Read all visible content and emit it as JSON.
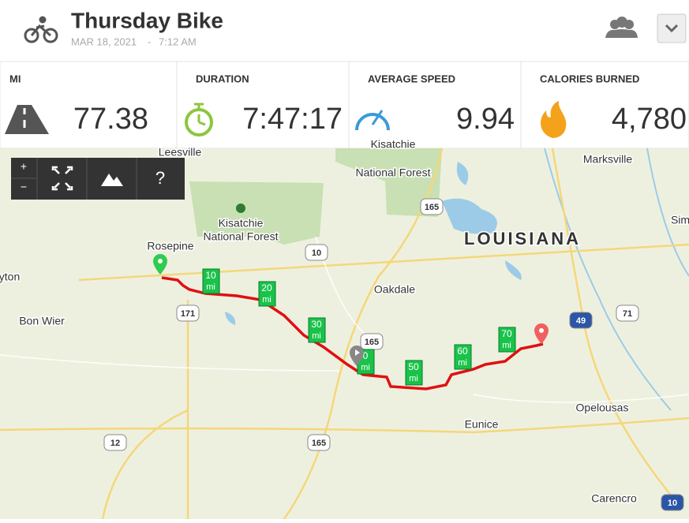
{
  "header": {
    "title": "Thursday Bike",
    "date": "MAR 18, 2021",
    "separator": "-",
    "time": "7:12 AM"
  },
  "stats": [
    {
      "label": "MI",
      "value": "77.38"
    },
    {
      "label": "DURATION",
      "value": "7:47:17"
    },
    {
      "label": "AVERAGE SPEED",
      "value": "9.94"
    },
    {
      "label": "CALORIES BURNED",
      "value": "4,780"
    }
  ],
  "map": {
    "controls": [
      "+",
      "−",
      "?"
    ],
    "places": [
      "Leesville",
      "Kisatchie",
      "National Forest",
      "Kisatchie",
      "National Forest",
      "Rosepine",
      "Oakdale",
      "LOUISIANA",
      "Marksville",
      "yton",
      "Bon Wier",
      "Eunice",
      "Opelousas",
      "Carencro",
      "Sim"
    ],
    "roads": [
      "165",
      "10",
      "171",
      "165",
      "49",
      "71",
      "12",
      "165",
      "10"
    ],
    "markers": [
      {
        "value": "10",
        "unit": "mi"
      },
      {
        "value": "20",
        "unit": "mi"
      },
      {
        "value": "30",
        "unit": "mi"
      },
      {
        "value": "0",
        "unit": "mi"
      },
      {
        "value": "50",
        "unit": "mi"
      },
      {
        "value": "60",
        "unit": "mi"
      },
      {
        "value": "70",
        "unit": "mi"
      }
    ]
  }
}
